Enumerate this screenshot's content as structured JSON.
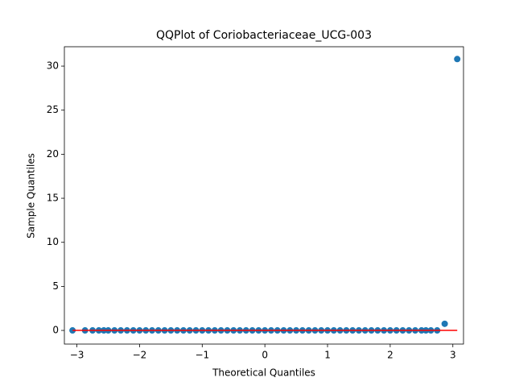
{
  "chart_data": {
    "type": "scatter",
    "title": "QQPlot of Coriobacteriaceae_UCG-003",
    "x_label": "Theoretical Quantiles",
    "y_label": "Sample Quantiles",
    "x": [
      -3.07,
      -2.87,
      -2.75,
      -2.65,
      -2.57,
      -2.5,
      -2.4,
      -2.3,
      -2.2,
      -2.1,
      -2.0,
      -1.9,
      -1.8,
      -1.7,
      -1.6,
      -1.5,
      -1.4,
      -1.3,
      -1.2,
      -1.1,
      -1.0,
      -0.9,
      -0.8,
      -0.7,
      -0.6,
      -0.5,
      -0.4,
      -0.3,
      -0.2,
      -0.1,
      0.0,
      0.1,
      0.2,
      0.3,
      0.4,
      0.5,
      0.6,
      0.7,
      0.8,
      0.9,
      1.0,
      1.1,
      1.2,
      1.3,
      1.4,
      1.5,
      1.6,
      1.7,
      1.8,
      1.9,
      2.0,
      2.1,
      2.2,
      2.3,
      2.4,
      2.5,
      2.57,
      2.65,
      2.75,
      2.87,
      3.07
    ],
    "values": [
      0,
      0,
      0,
      0,
      0,
      0,
      0,
      0,
      0,
      0,
      0,
      0,
      0,
      0,
      0,
      0,
      0,
      0,
      0,
      0,
      0,
      0,
      0,
      0,
      0,
      0,
      0,
      0,
      0,
      0,
      0,
      0,
      0,
      0,
      0,
      0,
      0,
      0,
      0,
      0,
      0,
      0,
      0,
      0,
      0,
      0,
      0,
      0,
      0,
      0,
      0,
      0,
      0,
      0,
      0,
      0,
      0,
      0,
      0,
      0.75,
      30.8
    ],
    "color": "#1f77b4",
    "reference_line": {
      "x": [
        -3.07,
        3.07
      ],
      "y": [
        0,
        0
      ],
      "color": "#ff0000"
    },
    "xlim": [
      -3.2,
      3.17
    ],
    "ylim": [
      -1.55,
      32.2
    ],
    "xticks": [
      {
        "value": -3,
        "label": "−3"
      },
      {
        "value": -2,
        "label": "−2"
      },
      {
        "value": -1,
        "label": "−1"
      },
      0,
      1,
      2,
      3
    ],
    "yticks": [
      0,
      5,
      10,
      15,
      20,
      25,
      30
    ]
  }
}
